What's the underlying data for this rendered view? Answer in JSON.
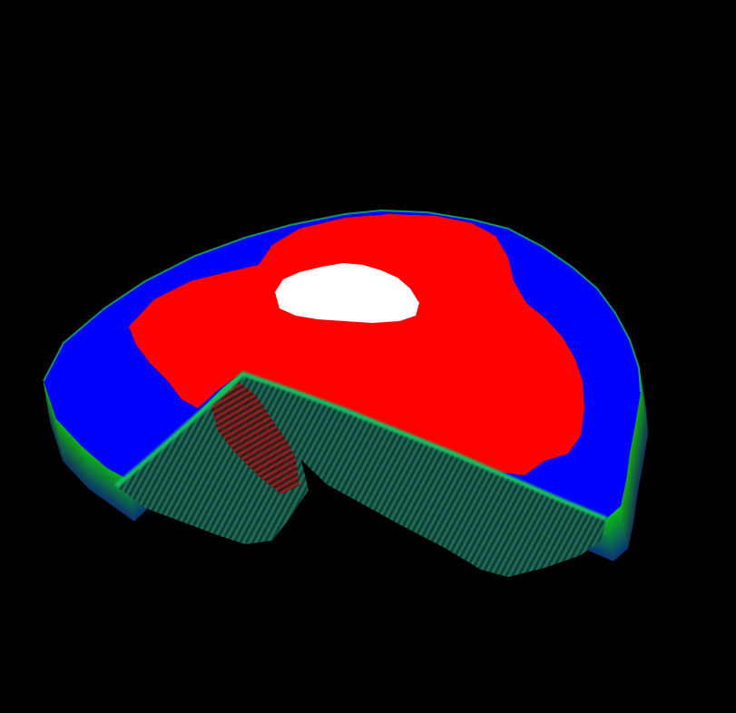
{
  "scene": {
    "background_color": "#000000",
    "object": "3d-voxel-volume-render",
    "colors": {
      "core": "#ffffff",
      "hot": "#ff0000",
      "warm": "#0000ff",
      "edge": "#00ff66",
      "edge_dark": "#0a6a4a",
      "cut_face": "#1c5a4c"
    },
    "layer_count": 22
  }
}
